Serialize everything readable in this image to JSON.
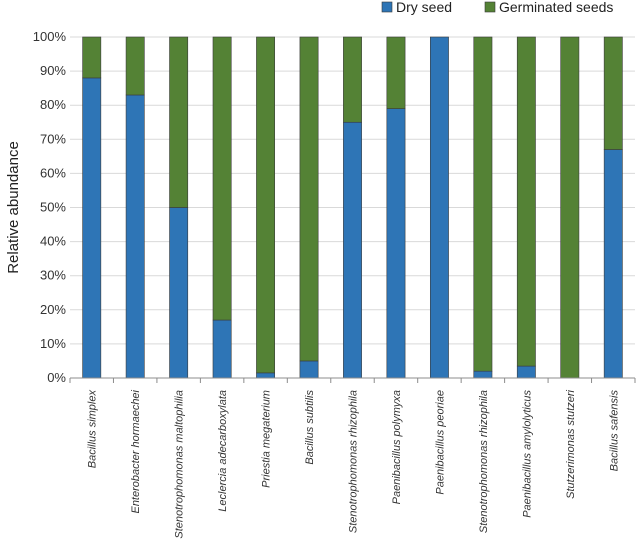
{
  "chart_data": {
    "type": "bar",
    "stacked": true,
    "percent": true,
    "categories": [
      "Bacillus simplex",
      "Enterobacter hormaechei",
      "Stenotrophomonas maltophilia",
      "Leclercia adecarboxylata",
      "Priestia megaterium",
      "Bacillus subtilis",
      "Stenotrophomonas rhizophila",
      "Paenibacillus polymyxa",
      "Paenibacillus peoriae",
      "Stenotrophomonas rhizophila",
      "Paenibacillus amylolyticus",
      "Stutzerimonas stutzeri",
      "Bacillus safensis"
    ],
    "series": [
      {
        "name": "Dry seed",
        "color": "#2E75B6",
        "values": [
          88,
          83,
          50,
          17,
          1.5,
          5,
          75,
          79,
          100,
          2,
          3.5,
          0,
          67
        ]
      },
      {
        "name": "Germinated seeds",
        "color": "#548235",
        "values": [
          12,
          17,
          50,
          83,
          98.5,
          95,
          25,
          21,
          0,
          98,
          96.5,
          100,
          33
        ]
      }
    ],
    "ylabel": "Relative abundance",
    "xlabel": "",
    "ylim": [
      0,
      100
    ],
    "yticks": [
      "0%",
      "10%",
      "20%",
      "30%",
      "40%",
      "50%",
      "60%",
      "70%",
      "80%",
      "90%",
      "100%"
    ],
    "grid": true,
    "legend_position": "top-right"
  }
}
